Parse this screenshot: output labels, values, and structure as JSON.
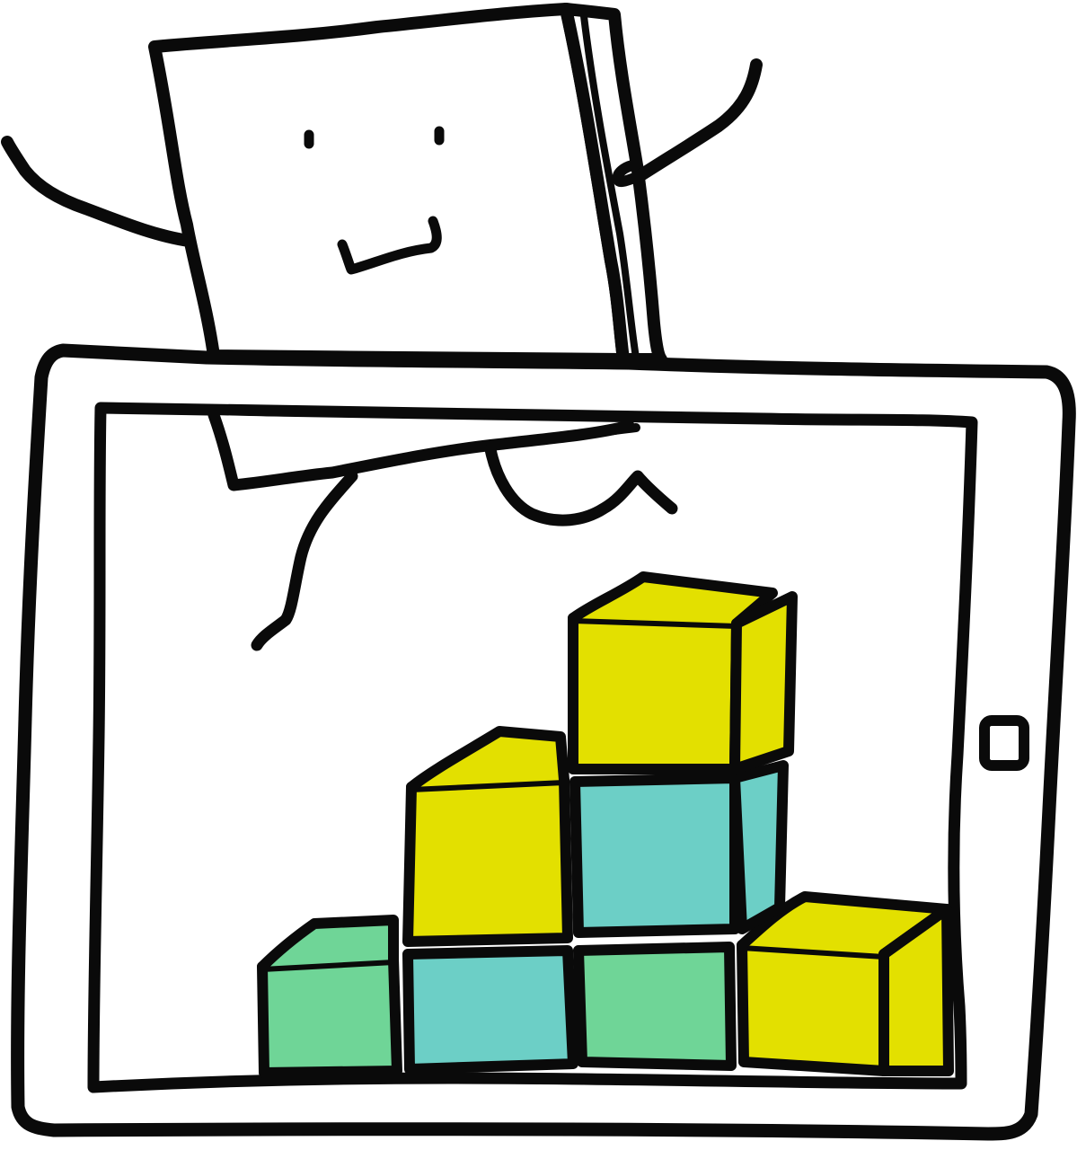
{
  "scene": {
    "subject": "cartoon-book-character-peeking-into-tablet-with-stacked-blocks",
    "colors": {
      "outline": "#0a0a0a",
      "background": "#ffffff",
      "block_yellow": "#e3e000",
      "block_teal": "#6ccfc6",
      "block_green": "#6fd597"
    },
    "blocks": {
      "count": 7,
      "rows": [
        {
          "row": 1,
          "colors": [
            "green",
            "teal",
            "green",
            "yellow"
          ]
        },
        {
          "row": 2,
          "colors": [
            "yellow",
            "teal"
          ]
        },
        {
          "row": 3,
          "colors": [
            "yellow"
          ]
        }
      ]
    }
  },
  "icons": [
    "book-character",
    "tablet-device",
    "home-button-icon"
  ]
}
